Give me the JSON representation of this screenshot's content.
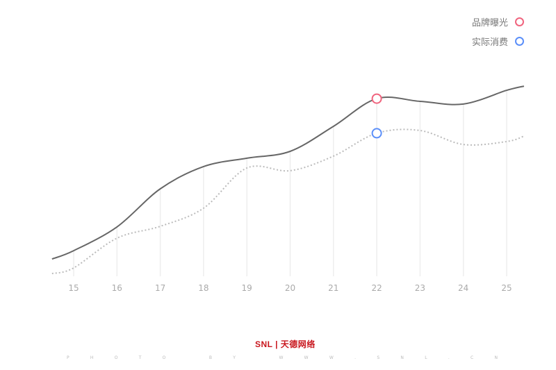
{
  "chart_data": {
    "type": "line",
    "x": [
      14.5,
      15,
      16,
      17,
      18,
      19,
      20,
      21,
      22,
      23,
      24,
      25,
      25.4
    ],
    "xticks": [
      "15",
      "16",
      "17",
      "18",
      "19",
      "20",
      "21",
      "22",
      "23",
      "24",
      "25"
    ],
    "xlim": [
      14.5,
      25.4
    ],
    "ylim": [
      0,
      100
    ],
    "grid": "vertical",
    "legend": "top-right",
    "highlight_x": 22,
    "series": [
      {
        "name": "品牌曝光",
        "color": "#f0647e",
        "line_color": "#666666",
        "style": "solid",
        "values": [
          8.3,
          12.3,
          23.7,
          42,
          52.7,
          56.7,
          60,
          72,
          85.3,
          84,
          82.7,
          89.3,
          91.3
        ]
      },
      {
        "name": "实际消费",
        "color": "#5b8ff9",
        "line_color": "#bbbbbb",
        "style": "dotted",
        "values": [
          1.3,
          4,
          18.3,
          24,
          32.7,
          52,
          50.7,
          57.7,
          68.7,
          70,
          63.3,
          64.7,
          67.3
        ]
      }
    ]
  },
  "watermark": {
    "logo": "SNL | 天德网络",
    "credit": [
      "P",
      "H",
      "O",
      "T",
      "O",
      "",
      "B",
      "Y",
      "",
      "W",
      "W",
      "W",
      ".",
      "S",
      "N",
      "L",
      ".",
      "C",
      "N"
    ]
  }
}
